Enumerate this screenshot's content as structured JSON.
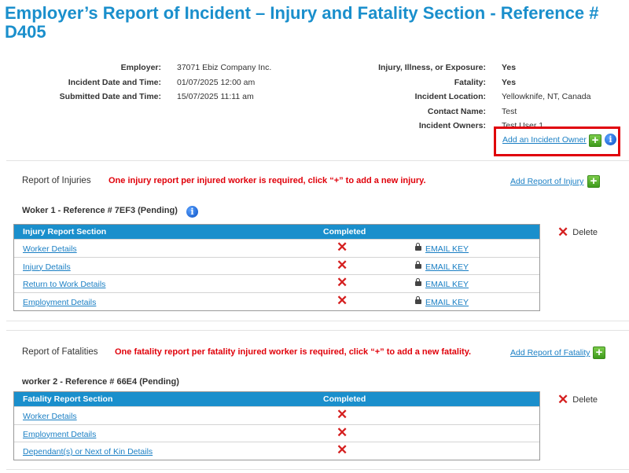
{
  "page": {
    "title": "Employer’s Report of Incident – Injury and Fatality Section - Reference # D405"
  },
  "incident_info": {
    "left": [
      {
        "label": "Employer:",
        "value": "37071 Ebiz Company Inc."
      },
      {
        "label": "Incident Date and Time:",
        "value": "01/07/2025 12:00 am"
      },
      {
        "label": "Submitted Date and Time:",
        "value": "15/07/2025 11:11 am"
      }
    ],
    "right": [
      {
        "label": "Injury, Illness, or Exposure:",
        "value": "Yes"
      },
      {
        "label": "Fatality:",
        "value": "Yes"
      },
      {
        "label": "Incident Location:",
        "value": "Yellowknife, NT, Canada"
      },
      {
        "label": "Contact Name:",
        "value": "Test"
      },
      {
        "label": "Incident Owners:",
        "value": "Test User 1"
      }
    ],
    "add_owner_label": "Add an Incident Owner"
  },
  "icons": {
    "plus": "+",
    "info": "i",
    "x": "✕"
  },
  "colors": {
    "title": "#1a8fcc",
    "table_header": "#1a8fcc",
    "warning": "#e0000a",
    "link": "#1a7fc4",
    "highlight_box": "#e0000a",
    "add_button": "#4caf28"
  },
  "injuries": {
    "section_title": "Report of Injuries",
    "warning": "One injury report per injured worker is required, click “+” to add a new injury.",
    "add_label": "Add Report of Injury",
    "worker_heading": "Woker 1 - Reference # 7EF3 (Pending)",
    "table_headers": {
      "section": "Injury Report Section",
      "completed": "Completed"
    },
    "rows": [
      {
        "label": "Worker Details",
        "key": "EMAIL KEY"
      },
      {
        "label": "Injury Details",
        "key": "EMAIL KEY"
      },
      {
        "label": "Return to Work Details",
        "key": "EMAIL KEY"
      },
      {
        "label": "Employment Details",
        "key": "EMAIL KEY"
      }
    ],
    "delete_label": "Delete"
  },
  "fatalities": {
    "section_title": "Report of Fatalities",
    "warning": "One fatality report per fatality injured worker is required, click “+” to add a new fatality.",
    "add_label": "Add Report of Fatality",
    "worker_heading": "worker 2 - Reference # 66E4 (Pending)",
    "table_headers": {
      "section": "Fatality Report Section",
      "completed": "Completed"
    },
    "rows": [
      {
        "label": "Worker Details"
      },
      {
        "label": "Employment Details"
      },
      {
        "label": "Dependant(s) or Next of Kin Details"
      }
    ],
    "delete_label": "Delete"
  }
}
